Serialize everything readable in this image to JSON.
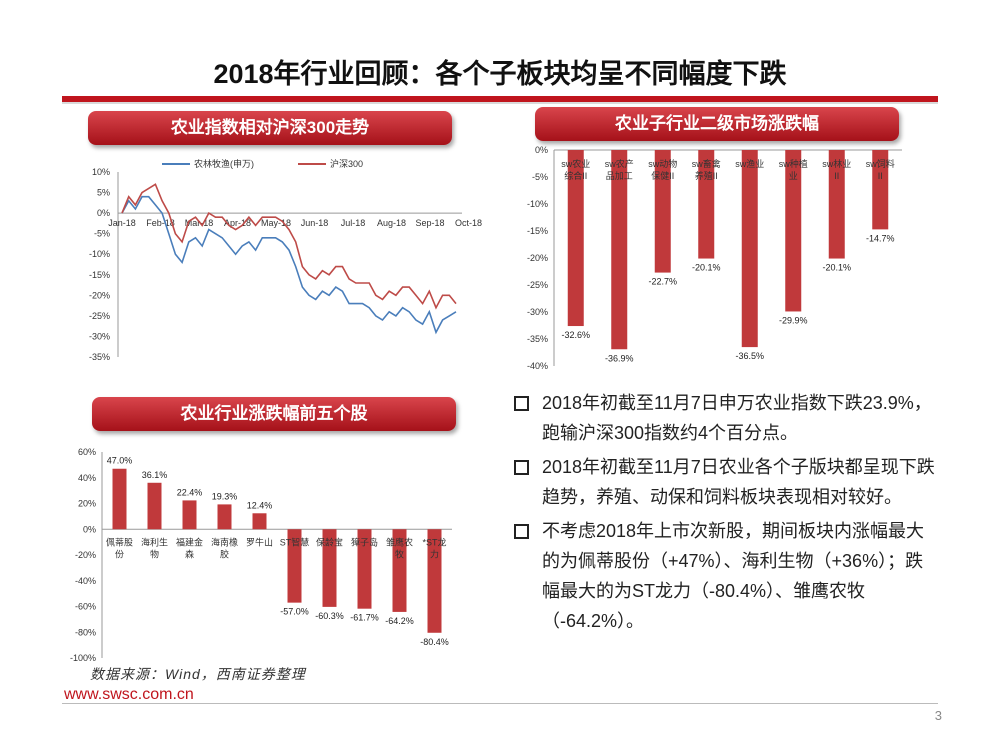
{
  "page": {
    "title": "2018年行业回顾：各个子板块均呈不同幅度下跌",
    "source": "数据来源：Wind，西南证券整理",
    "website": "www.swsc.com.cn",
    "page_number": "3",
    "colors": {
      "accent": "#c0151d",
      "bar": "#c0393b",
      "line_blue": "#4a7ebb",
      "line_red": "#be4b48"
    }
  },
  "panels": {
    "line_title": "农业指数相对沪深300走势",
    "sub_title": "农业子行业二级市场涨跌幅",
    "top5_title": "农业行业涨跌幅前五个股"
  },
  "bullets": [
    "2018年初截至11月7日申万农业指数下跌23.9%，跑输沪深300指数约4个百分点。",
    "2018年初截至11月7日农业各个子版块都呈现下跌趋势，养殖、动保和饲料板块表现相对较好。",
    "不考虑2018年上市次新股，期间板块内涨幅最大的为佩蒂股份（+47%）、海利生物（+36%）；跌幅最大的为ST龙力（-80.4%）、雏鹰农牧（-64.2%）。"
  ],
  "chart_data": [
    {
      "type": "line",
      "title": "农业指数相对沪深300走势",
      "x_ticks": [
        "Jan-18",
        "Feb-18",
        "Mar-18",
        "Apr-18",
        "May-18",
        "Jun-18",
        "Jul-18",
        "Aug-18",
        "Sep-18",
        "Oct-18"
      ],
      "ylim": [
        -35,
        10
      ],
      "y_ticks": [
        "10%",
        "5%",
        "0%",
        "-5%",
        "-10%",
        "-15%",
        "-20%",
        "-25%",
        "-30%",
        "-35%"
      ],
      "series": [
        {
          "name": "农林牧渔(申万)",
          "values": [
            0,
            3,
            1,
            4,
            4,
            2,
            0,
            -5,
            -10,
            -12,
            -7,
            -6,
            -8,
            -4,
            -5,
            -6,
            -8,
            -10,
            -8,
            -7,
            -9,
            -6,
            -6,
            -6,
            -7,
            -9,
            -13,
            -18,
            -20,
            -21,
            -19,
            -20,
            -18,
            -19,
            -22,
            -22,
            -22,
            -23,
            -25,
            -26,
            -24,
            -25,
            -23,
            -24,
            -26,
            -27,
            -24,
            -29,
            -26,
            -25,
            -24
          ]
        },
        {
          "name": "沪深300",
          "values": [
            0,
            4,
            2,
            5,
            6,
            7,
            3,
            0,
            -5,
            -7,
            -2,
            -1,
            -3,
            0,
            -1,
            -1,
            -3,
            -4,
            -3,
            -1,
            -3,
            -1,
            -1,
            -1,
            -2,
            -4,
            -7,
            -13,
            -15,
            -16,
            -14,
            -15,
            -13,
            -13,
            -16,
            -17,
            -17,
            -17,
            -20,
            -21,
            -19,
            -20,
            -18,
            -18,
            -20,
            -22,
            -19,
            -23,
            -20,
            -20,
            -22
          ]
        }
      ]
    },
    {
      "type": "bar",
      "title": "农业子行业二级市场涨跌幅",
      "categories": [
        "sw农业综合II",
        "sw农产品加工",
        "sw动物保健II",
        "sw畜禽养殖II",
        "sw渔业",
        "sw种植业",
        "sw林业II",
        "sw饲料II"
      ],
      "category_lines": [
        [
          "sw农业",
          "综合II"
        ],
        [
          "sw农产",
          "品加工"
        ],
        [
          "sw动物",
          "保健II"
        ],
        [
          "sw畜禽",
          "养殖II"
        ],
        [
          "sw渔业",
          ""
        ],
        [
          "sw种植",
          "业"
        ],
        [
          "sw林业",
          "II"
        ],
        [
          "sw饲料",
          "II"
        ]
      ],
      "values": [
        -32.6,
        -36.9,
        -22.7,
        -20.1,
        -36.5,
        -29.9,
        -20.1,
        -14.7
      ],
      "labels": [
        "-32.6%",
        "-36.9%",
        "-22.7%",
        "-20.1%",
        "-36.5%",
        "-29.9%",
        "-20.1%",
        "-14.7%"
      ],
      "ylim": [
        -40,
        0
      ],
      "y_ticks": [
        "0%",
        "-5%",
        "-10%",
        "-15%",
        "-20%",
        "-25%",
        "-30%",
        "-35%",
        "-40%"
      ]
    },
    {
      "type": "bar",
      "title": "农业行业涨跌幅前五个股",
      "categories": [
        "佩蒂股份",
        "海利生物",
        "福建金森",
        "海南橡胶",
        "罗牛山",
        "ST智慧",
        "保龄宝",
        "獐子岛",
        "雏鹰农牧",
        "*ST龙力"
      ],
      "category_lines": [
        [
          "佩蒂股",
          "份"
        ],
        [
          "海利生",
          "物"
        ],
        [
          "福建金",
          "森"
        ],
        [
          "海南橡",
          "胶"
        ],
        [
          "罗牛山",
          ""
        ],
        [
          "ST智慧",
          ""
        ],
        [
          "保龄宝",
          ""
        ],
        [
          "獐子岛",
          ""
        ],
        [
          "雏鹰农",
          "牧"
        ],
        [
          "*ST龙",
          "力"
        ]
      ],
      "values": [
        47.0,
        36.1,
        22.4,
        19.3,
        12.4,
        -57.0,
        -60.3,
        -61.7,
        -64.2,
        -80.4
      ],
      "labels": [
        "47.0%",
        "36.1%",
        "22.4%",
        "19.3%",
        "12.4%",
        "-57.0%",
        "-60.3%",
        "-61.7%",
        "-64.2%",
        "-80.4%"
      ],
      "ylim": [
        -100,
        60
      ],
      "y_ticks": [
        "60%",
        "40%",
        "20%",
        "0%",
        "-20%",
        "-40%",
        "-60%",
        "-80%",
        "-100%"
      ]
    }
  ]
}
